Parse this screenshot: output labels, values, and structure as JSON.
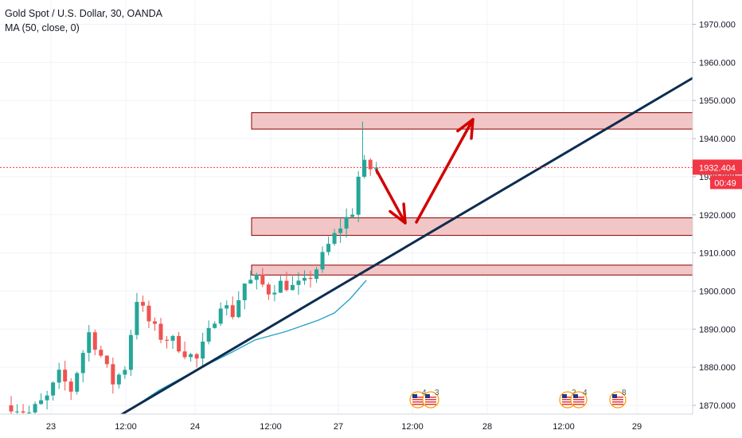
{
  "header": {
    "symbol": "Gold Spot / U.S. Dollar, 30, OANDA",
    "indicator": "MA (50, close, 0)"
  },
  "price_tag": {
    "price": "1932.404",
    "countdown": "00:49",
    "color": "#f23645"
  },
  "colors": {
    "up": "#26a69a",
    "down": "#ef5350",
    "ma": "#2aa3c9",
    "trendline": "#0d2d4f",
    "arrow": "#d40000",
    "zone_fill": "#f2c6c6",
    "zone_stroke": "#8b0000"
  },
  "events": [
    {
      "flag": "us-flag-icon",
      "count": "4"
    },
    {
      "flag": "us-flag-icon",
      "count": "3"
    },
    {
      "flag": "us-flag-icon",
      "count": "2"
    },
    {
      "flag": "us-flag-icon",
      "count": "4"
    },
    {
      "flag": "us-flag-icon",
      "count": "8"
    }
  ],
  "chart_data": {
    "type": "candlestick",
    "title": "Gold Spot / U.S. Dollar, 30, OANDA",
    "x_ticks": [
      "23",
      "12:00",
      "24",
      "12:00",
      "27",
      "12:00",
      "28",
      "12:00",
      "29"
    ],
    "y_ticks": [
      "1870.000",
      "1880.000",
      "1890.000",
      "1900.000",
      "1910.000",
      "1920.000",
      "1930.000",
      "1940.000",
      "1950.000",
      "1960.000",
      "1970.000"
    ],
    "y_range": [
      1867,
      1974
    ],
    "last_price": 1932.404,
    "candle_path": [
      [
        0,
        1870
      ],
      [
        3,
        1868
      ],
      [
        6,
        1872
      ],
      [
        8,
        1878
      ],
      [
        10,
        1874
      ],
      [
        13,
        1889
      ],
      [
        15,
        1883
      ],
      [
        17,
        1876
      ],
      [
        19,
        1880
      ],
      [
        21,
        1898
      ],
      [
        23,
        1892
      ],
      [
        25,
        1888
      ],
      [
        27,
        1887
      ],
      [
        29,
        1884
      ],
      [
        31,
        1882
      ],
      [
        33,
        1889
      ],
      [
        35,
        1897
      ],
      [
        37,
        1894
      ],
      [
        39,
        1902
      ],
      [
        41,
        1903
      ],
      [
        43,
        1900
      ],
      [
        45,
        1902
      ],
      [
        47,
        1901
      ],
      [
        49,
        1902
      ],
      [
        51,
        1906
      ],
      [
        53,
        1912
      ],
      [
        55,
        1917
      ],
      [
        57,
        1921
      ],
      [
        58,
        1930
      ],
      [
        59,
        1934
      ],
      [
        60,
        1932
      ],
      [
        61,
        1932.4
      ]
    ],
    "ma_line": [
      [
        38.9,
        1881.5
      ],
      [
        50,
        1889
      ],
      [
        55,
        1896
      ],
      [
        60,
        1901
      ]
    ],
    "horizontal_zones": [
      [
        1942.5,
        1946.8
      ],
      [
        1914.6,
        1919.2
      ],
      [
        1904.2,
        1906.8
      ]
    ],
    "trendline": [
      [
        16,
        1867
      ],
      [
        93,
        1956
      ]
    ],
    "arrows": [
      {
        "from": [
          49.8,
          1932
        ],
        "to": [
          53.2,
          1917.5
        ]
      },
      {
        "from": [
          54.8,
          1917.5
        ],
        "to": [
          61.5,
          1946
        ]
      }
    ]
  }
}
